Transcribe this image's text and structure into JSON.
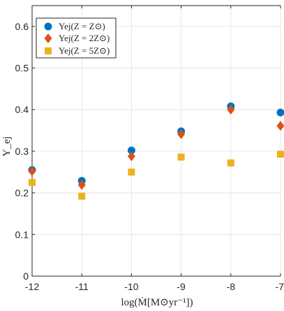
{
  "chart_data": {
    "type": "scatter",
    "xlabel": "log(Ṁ[M⊙yr⁻¹])",
    "ylabel": "Y_ej",
    "xlim": [
      -12,
      -7
    ],
    "ylim": [
      0,
      0.65
    ],
    "xticks": [
      -12,
      -11,
      -10,
      -9,
      -8,
      -7
    ],
    "xtick_labels": [
      "-12",
      "-11",
      "-10",
      "-9",
      "-8",
      "-7"
    ],
    "yticks": [
      0,
      0.1,
      0.2,
      0.3,
      0.4,
      0.5,
      0.6
    ],
    "ytick_labels": [
      "0",
      "0.1",
      "0.2",
      "0.3",
      "0.4",
      "0.5",
      "0.6"
    ],
    "grid": true,
    "legend_position": "top-left",
    "series": [
      {
        "name": "Yej(Z = Z⊙)",
        "marker": "circle",
        "color": "#0072BD",
        "x": [
          -12,
          -11,
          -10,
          -9,
          -8,
          -7
        ],
        "y": [
          0.255,
          0.229,
          0.302,
          0.348,
          0.408,
          0.393
        ]
      },
      {
        "name": "Yej(Z = 2Z⊙)",
        "marker": "diamond",
        "color": "#D95319",
        "x": [
          -12,
          -11,
          -10,
          -9,
          -8,
          -7
        ],
        "y": [
          0.252,
          0.219,
          0.288,
          0.341,
          0.4,
          0.361
        ]
      },
      {
        "name": "Yej(Z = 5Z⊙)",
        "marker": "square",
        "color": "#EDB120",
        "x": [
          -12,
          -11,
          -10,
          -9,
          -8,
          -7
        ],
        "y": [
          0.225,
          0.192,
          0.25,
          0.286,
          0.272,
          0.293
        ]
      }
    ]
  }
}
